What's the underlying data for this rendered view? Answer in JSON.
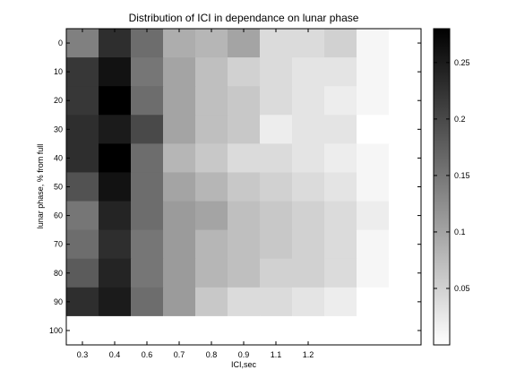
{
  "chart_data": {
    "type": "heatmap",
    "title": "Distribution of ICI in dependance on lunar phase",
    "xlabel": "ICI,sec",
    "ylabel": "lunar phase, % from full",
    "x_tick_labels": [
      "0.3",
      "0.4",
      "0.6",
      "0.7",
      "0.8",
      "0.9",
      "1.1",
      "1.2"
    ],
    "y_tick_labels": [
      "0",
      "10",
      "20",
      "30",
      "40",
      "50",
      "60",
      "70",
      "80",
      "90",
      "100"
    ],
    "colorbar": {
      "colormap": "gray-reversed",
      "range": [
        0,
        0.28
      ],
      "ticks": [
        "0.25",
        "0.2",
        "0.15",
        "0.1",
        "0.05"
      ]
    },
    "columns": 11,
    "values": [
      [
        0.14,
        0.23,
        0.16,
        0.09,
        0.08,
        0.1,
        0.04,
        0.04,
        0.05,
        0.01,
        0.0
      ],
      [
        0.22,
        0.26,
        0.15,
        0.1,
        0.07,
        0.05,
        0.04,
        0.03,
        0.03,
        0.01,
        0.0
      ],
      [
        0.22,
        0.28,
        0.16,
        0.1,
        0.07,
        0.06,
        0.04,
        0.03,
        0.02,
        0.01,
        0.0
      ],
      [
        0.23,
        0.25,
        0.2,
        0.1,
        0.07,
        0.06,
        0.02,
        0.03,
        0.03,
        0.0,
        0.0
      ],
      [
        0.23,
        0.28,
        0.16,
        0.08,
        0.06,
        0.04,
        0.04,
        0.03,
        0.02,
        0.01,
        0.0
      ],
      [
        0.19,
        0.26,
        0.16,
        0.1,
        0.08,
        0.06,
        0.05,
        0.04,
        0.03,
        0.01,
        0.0
      ],
      [
        0.15,
        0.24,
        0.16,
        0.11,
        0.1,
        0.07,
        0.06,
        0.05,
        0.04,
        0.02,
        0.0
      ],
      [
        0.16,
        0.23,
        0.15,
        0.11,
        0.08,
        0.07,
        0.06,
        0.05,
        0.04,
        0.01,
        0.0
      ],
      [
        0.18,
        0.24,
        0.15,
        0.11,
        0.08,
        0.07,
        0.05,
        0.05,
        0.04,
        0.01,
        0.0
      ],
      [
        0.23,
        0.25,
        0.16,
        0.11,
        0.06,
        0.04,
        0.04,
        0.03,
        0.02,
        0.0,
        0.0
      ],
      [
        0.0,
        0.0,
        0.0,
        0.0,
        0.0,
        0.0,
        0.0,
        0.0,
        0.0,
        0.0,
        0.0
      ]
    ]
  }
}
